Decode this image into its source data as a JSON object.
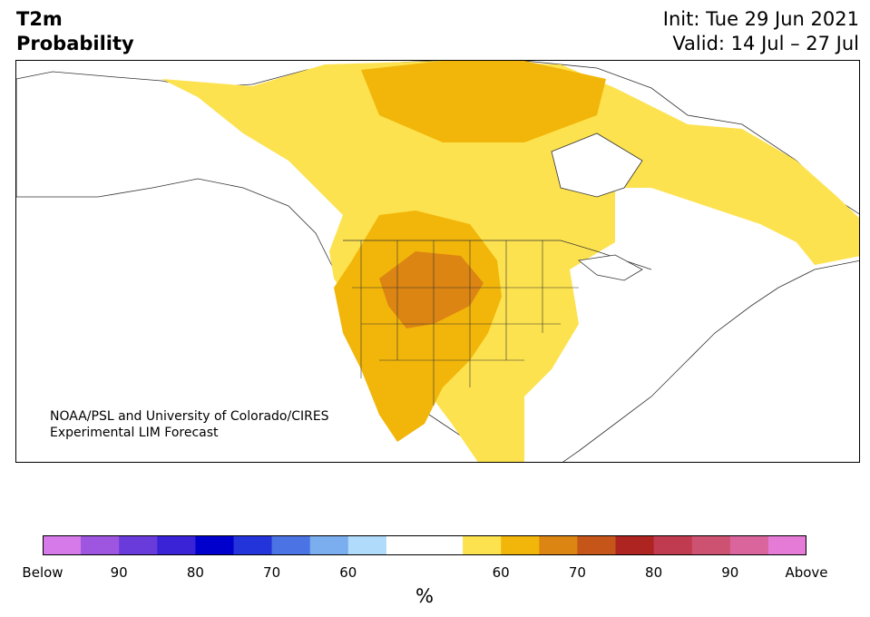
{
  "title": {
    "left_line1": "T2m",
    "left_line2": "Probability",
    "right_line1": "Init: Tue 29 Jun 2021",
    "right_line2": "Valid: 14 Jul – 27 Jul"
  },
  "credit": {
    "line1": "NOAA/PSL and University of Colorado/CIRES",
    "line2": "Experimental LIM Forecast"
  },
  "colorbar": {
    "unit": "%",
    "tick_labels": [
      "Below",
      "90",
      "80",
      "70",
      "60",
      "",
      "60",
      "70",
      "80",
      "90",
      "Above"
    ],
    "colors": [
      "#d57ae8",
      "#9e55e0",
      "#6a3bdb",
      "#3a22d6",
      "#0000cc",
      "#2335da",
      "#4b73e3",
      "#7aaeee",
      "#b0dbfa",
      "#ffffff",
      "#ffffff",
      "#fde24f",
      "#f2b60a",
      "#dc8512",
      "#c55518",
      "#ad2420",
      "#c03a50",
      "#cd5170",
      "#d9659c",
      "#e57bd6"
    ]
  },
  "map": {
    "region": "North America",
    "land_color": "#ffffff",
    "shading_levels": {
      "above_55": "#fde24f",
      "above_60": "#f2b60a",
      "above_70": "#dc8512"
    }
  }
}
